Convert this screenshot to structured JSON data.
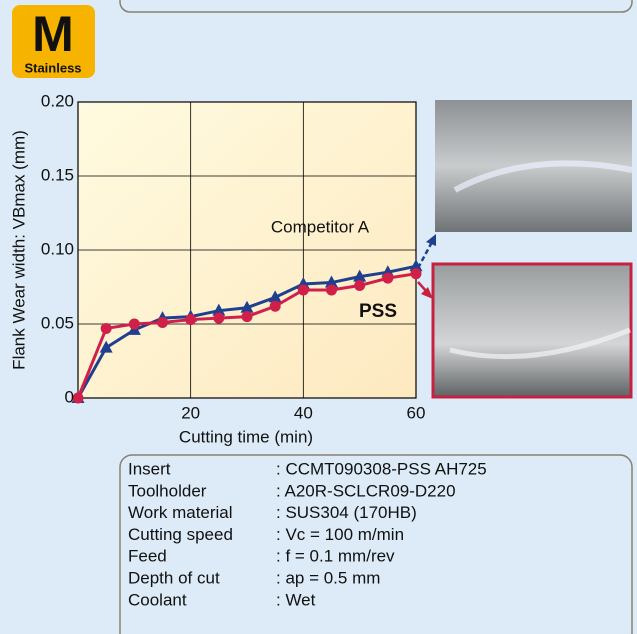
{
  "logo": {
    "letter": "M",
    "label": "Stainless"
  },
  "chart_data": {
    "type": "line",
    "xlabel": "Cutting time (min)",
    "ylabel": "Flank Wear width: VBmax (mm)",
    "x": [
      0,
      5,
      10,
      15,
      20,
      25,
      30,
      35,
      40,
      45,
      50,
      55,
      60
    ],
    "series": [
      {
        "name": "Competitor A",
        "color": "#1f3f8f",
        "marker": "triangle",
        "values": [
          0,
          0.034,
          0.046,
          0.054,
          0.055,
          0.059,
          0.061,
          0.068,
          0.077,
          0.078,
          0.082,
          0.085,
          0.089
        ]
      },
      {
        "name": "PSS",
        "color": "#d0204a",
        "marker": "circle",
        "values": [
          0,
          0.047,
          0.05,
          0.051,
          0.053,
          0.054,
          0.055,
          0.062,
          0.073,
          0.073,
          0.076,
          0.081,
          0.084
        ]
      }
    ],
    "xlim": [
      0,
      60
    ],
    "xticks": [
      20,
      40,
      60
    ],
    "ylim": [
      0,
      0.2
    ],
    "yticks": [
      0,
      0.05,
      {
        "value": 0.1,
        "label": "0.10"
      },
      0.15,
      {
        "value": 0.2,
        "label": "0.20"
      }
    ],
    "grid": true
  },
  "specs": [
    {
      "label": "Insert",
      "value": ": CCMT090308-PSS AH725"
    },
    {
      "label": "Toolholder",
      "value": ": A20R-SCLCR09-D220"
    },
    {
      "label": "Work material",
      "value": ": SUS304 (170HB)"
    },
    {
      "label": "Cutting speed",
      "value": ": Vc = 100 m/min"
    },
    {
      "label": "Feed",
      "value": ": f = 0.1 mm/rev"
    },
    {
      "label": "Depth of cut",
      "value": ": ap = 0.5 mm"
    },
    {
      "label": "Coolant",
      "value": ": Wet"
    }
  ]
}
